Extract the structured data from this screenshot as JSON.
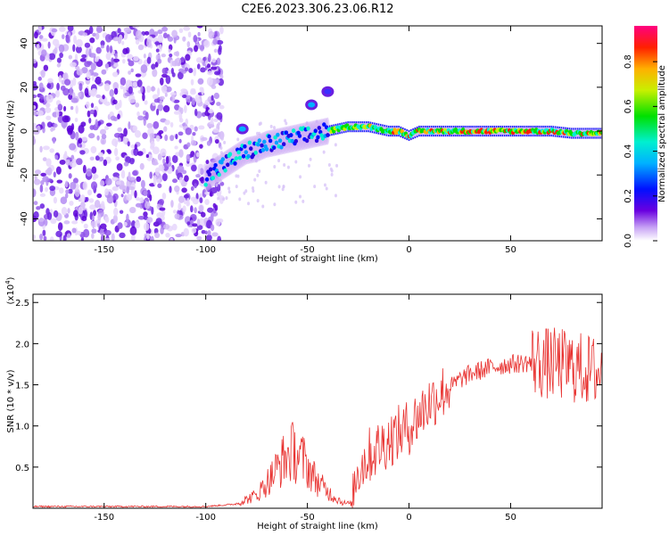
{
  "title": "C2E6.2023.306.23.06.R12",
  "spectrogram": {
    "type": "heatmap",
    "xlabel": "Height of straight line (km)",
    "ylabel": "Frequency (Hz)",
    "xlim": [
      -185,
      95
    ],
    "ylim": [
      -50,
      48
    ],
    "xticks": [
      -150,
      -100,
      -50,
      0,
      50
    ],
    "yticks": [
      -40,
      -20,
      0,
      20,
      40
    ],
    "ridge": [
      [
        -100,
        -22
      ],
      [
        -95,
        -18
      ],
      [
        -90,
        -15
      ],
      [
        -85,
        -12
      ],
      [
        -80,
        -9
      ],
      [
        -75,
        -8
      ],
      [
        -70,
        -6
      ],
      [
        -65,
        -5
      ],
      [
        -60,
        -4
      ],
      [
        -55,
        -3
      ],
      [
        -50,
        -2
      ],
      [
        -45,
        -1
      ],
      [
        -40,
        0
      ],
      [
        -35,
        1
      ],
      [
        -30,
        2
      ],
      [
        -25,
        2
      ],
      [
        -20,
        2
      ],
      [
        -15,
        1
      ],
      [
        -10,
        0
      ],
      [
        -5,
        0
      ],
      [
        0,
        -2
      ],
      [
        5,
        0
      ],
      [
        10,
        0
      ],
      [
        20,
        0
      ],
      [
        30,
        0
      ],
      [
        40,
        0
      ],
      [
        50,
        0
      ],
      [
        60,
        0
      ],
      [
        70,
        0
      ],
      [
        80,
        -1
      ],
      [
        90,
        -1
      ],
      [
        95,
        -1
      ]
    ],
    "blobs": [
      {
        "x": -82,
        "y": 1,
        "level": 0.4
      },
      {
        "x": -48,
        "y": 12,
        "level": 0.4
      },
      {
        "x": -40,
        "y": 18,
        "level": 0.2
      }
    ]
  },
  "colorbar": {
    "label": "Normalized spectral amplitude",
    "ticks": [
      "0.0",
      "0.2",
      "0.4",
      "0.6",
      "0.8"
    ],
    "tick_values": [
      0.0,
      0.2,
      0.4,
      0.6,
      0.8
    ],
    "max": 0.96
  },
  "snr": {
    "type": "line",
    "xlabel": "Height of straight line (km)",
    "ylabel": "SNR (10 * v/v)",
    "scale_label_base": "(x10",
    "scale_label_exp": "4",
    "scale_label_end": ")",
    "xlim": [
      -185,
      95
    ],
    "ylim": [
      0,
      2.6
    ],
    "xticks": [
      -150,
      -100,
      -50,
      0,
      50
    ],
    "yticks": [
      "0.5",
      "1.0",
      "1.5",
      "2.0",
      "2.5"
    ],
    "color": "#e8312f",
    "envelope": [
      [
        -185,
        0.02
      ],
      [
        -100,
        0.02
      ],
      [
        -85,
        0.05
      ],
      [
        -75,
        0.15
      ],
      [
        -68,
        0.35
      ],
      [
        -62,
        0.55
      ],
      [
        -57,
        0.65
      ],
      [
        -52,
        0.55
      ],
      [
        -45,
        0.3
      ],
      [
        -38,
        0.15
      ],
      [
        -32,
        0.06
      ],
      [
        -28,
        0.05
      ],
      [
        -26,
        0.4
      ],
      [
        -20,
        0.6
      ],
      [
        -10,
        0.8
      ],
      [
        0,
        0.95
      ],
      [
        5,
        1.1
      ],
      [
        10,
        1.25
      ],
      [
        15,
        1.35
      ],
      [
        20,
        1.45
      ],
      [
        25,
        1.55
      ],
      [
        30,
        1.62
      ],
      [
        40,
        1.7
      ],
      [
        50,
        1.74
      ],
      [
        60,
        1.76
      ],
      [
        65,
        1.72
      ],
      [
        75,
        1.7
      ],
      [
        85,
        1.65
      ],
      [
        95,
        1.6
      ]
    ]
  }
}
